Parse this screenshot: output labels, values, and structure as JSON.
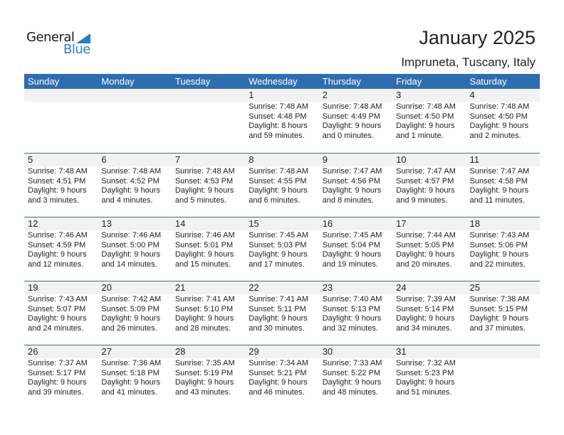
{
  "logo": {
    "line1": "General",
    "line2": "Blue"
  },
  "title": "January 2025",
  "location": "Impruneta, Tuscany, Italy",
  "weekdays": [
    "Sunday",
    "Monday",
    "Tuesday",
    "Wednesday",
    "Thursday",
    "Friday",
    "Saturday"
  ],
  "colors": {
    "header": "#2E6DB0",
    "band": "#F2F2F2"
  },
  "first_weekday_offset": 3,
  "days": [
    {
      "d": "1",
      "rise": "Sunrise: 7:48 AM",
      "set": "Sunset: 4:48 PM",
      "dl1": "Daylight: 8 hours",
      "dl2": "and 59 minutes."
    },
    {
      "d": "2",
      "rise": "Sunrise: 7:48 AM",
      "set": "Sunset: 4:49 PM",
      "dl1": "Daylight: 9 hours",
      "dl2": "and 0 minutes."
    },
    {
      "d": "3",
      "rise": "Sunrise: 7:48 AM",
      "set": "Sunset: 4:50 PM",
      "dl1": "Daylight: 9 hours",
      "dl2": "and 1 minute."
    },
    {
      "d": "4",
      "rise": "Sunrise: 7:48 AM",
      "set": "Sunset: 4:50 PM",
      "dl1": "Daylight: 9 hours",
      "dl2": "and 2 minutes."
    },
    {
      "d": "5",
      "rise": "Sunrise: 7:48 AM",
      "set": "Sunset: 4:51 PM",
      "dl1": "Daylight: 9 hours",
      "dl2": "and 3 minutes."
    },
    {
      "d": "6",
      "rise": "Sunrise: 7:48 AM",
      "set": "Sunset: 4:52 PM",
      "dl1": "Daylight: 9 hours",
      "dl2": "and 4 minutes."
    },
    {
      "d": "7",
      "rise": "Sunrise: 7:48 AM",
      "set": "Sunset: 4:53 PM",
      "dl1": "Daylight: 9 hours",
      "dl2": "and 5 minutes."
    },
    {
      "d": "8",
      "rise": "Sunrise: 7:48 AM",
      "set": "Sunset: 4:55 PM",
      "dl1": "Daylight: 9 hours",
      "dl2": "and 6 minutes."
    },
    {
      "d": "9",
      "rise": "Sunrise: 7:47 AM",
      "set": "Sunset: 4:56 PM",
      "dl1": "Daylight: 9 hours",
      "dl2": "and 8 minutes."
    },
    {
      "d": "10",
      "rise": "Sunrise: 7:47 AM",
      "set": "Sunset: 4:57 PM",
      "dl1": "Daylight: 9 hours",
      "dl2": "and 9 minutes."
    },
    {
      "d": "11",
      "rise": "Sunrise: 7:47 AM",
      "set": "Sunset: 4:58 PM",
      "dl1": "Daylight: 9 hours",
      "dl2": "and 11 minutes."
    },
    {
      "d": "12",
      "rise": "Sunrise: 7:46 AM",
      "set": "Sunset: 4:59 PM",
      "dl1": "Daylight: 9 hours",
      "dl2": "and 12 minutes."
    },
    {
      "d": "13",
      "rise": "Sunrise: 7:46 AM",
      "set": "Sunset: 5:00 PM",
      "dl1": "Daylight: 9 hours",
      "dl2": "and 14 minutes."
    },
    {
      "d": "14",
      "rise": "Sunrise: 7:46 AM",
      "set": "Sunset: 5:01 PM",
      "dl1": "Daylight: 9 hours",
      "dl2": "and 15 minutes."
    },
    {
      "d": "15",
      "rise": "Sunrise: 7:45 AM",
      "set": "Sunset: 5:03 PM",
      "dl1": "Daylight: 9 hours",
      "dl2": "and 17 minutes."
    },
    {
      "d": "16",
      "rise": "Sunrise: 7:45 AM",
      "set": "Sunset: 5:04 PM",
      "dl1": "Daylight: 9 hours",
      "dl2": "and 19 minutes."
    },
    {
      "d": "17",
      "rise": "Sunrise: 7:44 AM",
      "set": "Sunset: 5:05 PM",
      "dl1": "Daylight: 9 hours",
      "dl2": "and 20 minutes."
    },
    {
      "d": "18",
      "rise": "Sunrise: 7:43 AM",
      "set": "Sunset: 5:06 PM",
      "dl1": "Daylight: 9 hours",
      "dl2": "and 22 minutes."
    },
    {
      "d": "19",
      "rise": "Sunrise: 7:43 AM",
      "set": "Sunset: 5:07 PM",
      "dl1": "Daylight: 9 hours",
      "dl2": "and 24 minutes."
    },
    {
      "d": "20",
      "rise": "Sunrise: 7:42 AM",
      "set": "Sunset: 5:09 PM",
      "dl1": "Daylight: 9 hours",
      "dl2": "and 26 minutes."
    },
    {
      "d": "21",
      "rise": "Sunrise: 7:41 AM",
      "set": "Sunset: 5:10 PM",
      "dl1": "Daylight: 9 hours",
      "dl2": "and 28 minutes."
    },
    {
      "d": "22",
      "rise": "Sunrise: 7:41 AM",
      "set": "Sunset: 5:11 PM",
      "dl1": "Daylight: 9 hours",
      "dl2": "and 30 minutes."
    },
    {
      "d": "23",
      "rise": "Sunrise: 7:40 AM",
      "set": "Sunset: 5:13 PM",
      "dl1": "Daylight: 9 hours",
      "dl2": "and 32 minutes."
    },
    {
      "d": "24",
      "rise": "Sunrise: 7:39 AM",
      "set": "Sunset: 5:14 PM",
      "dl1": "Daylight: 9 hours",
      "dl2": "and 34 minutes."
    },
    {
      "d": "25",
      "rise": "Sunrise: 7:38 AM",
      "set": "Sunset: 5:15 PM",
      "dl1": "Daylight: 9 hours",
      "dl2": "and 37 minutes."
    },
    {
      "d": "26",
      "rise": "Sunrise: 7:37 AM",
      "set": "Sunset: 5:17 PM",
      "dl1": "Daylight: 9 hours",
      "dl2": "and 39 minutes."
    },
    {
      "d": "27",
      "rise": "Sunrise: 7:36 AM",
      "set": "Sunset: 5:18 PM",
      "dl1": "Daylight: 9 hours",
      "dl2": "and 41 minutes."
    },
    {
      "d": "28",
      "rise": "Sunrise: 7:35 AM",
      "set": "Sunset: 5:19 PM",
      "dl1": "Daylight: 9 hours",
      "dl2": "and 43 minutes."
    },
    {
      "d": "29",
      "rise": "Sunrise: 7:34 AM",
      "set": "Sunset: 5:21 PM",
      "dl1": "Daylight: 9 hours",
      "dl2": "and 46 minutes."
    },
    {
      "d": "30",
      "rise": "Sunrise: 7:33 AM",
      "set": "Sunset: 5:22 PM",
      "dl1": "Daylight: 9 hours",
      "dl2": "and 48 minutes."
    },
    {
      "d": "31",
      "rise": "Sunrise: 7:32 AM",
      "set": "Sunset: 5:23 PM",
      "dl1": "Daylight: 9 hours",
      "dl2": "and 51 minutes."
    }
  ]
}
